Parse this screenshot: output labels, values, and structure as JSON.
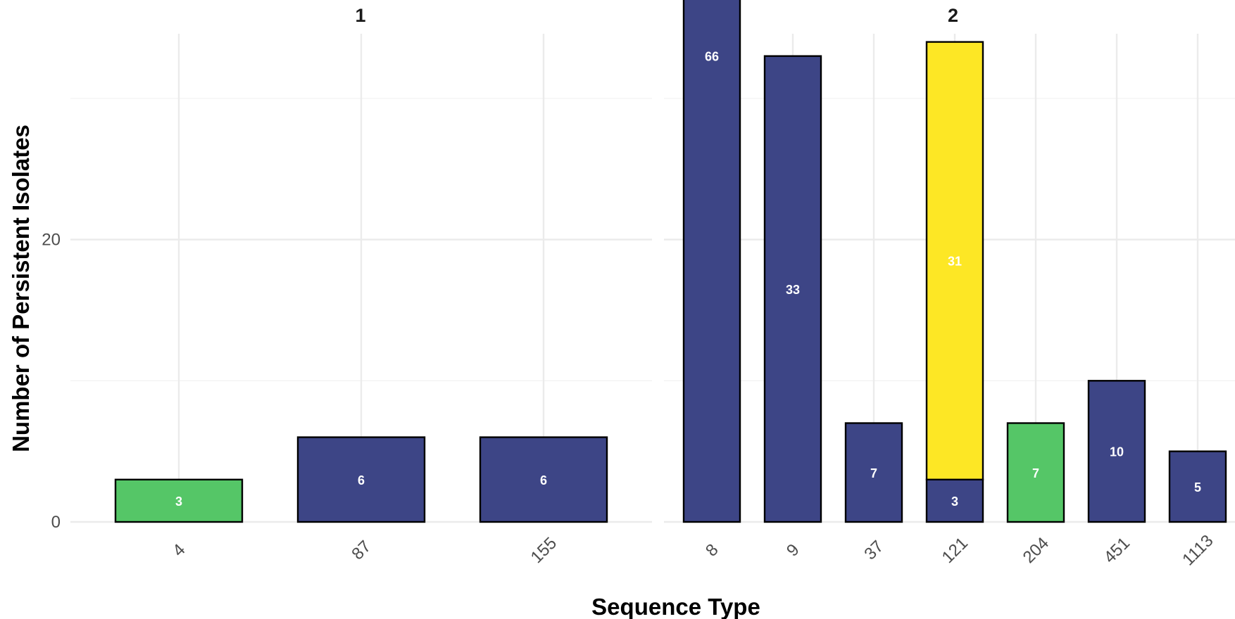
{
  "chart_data": {
    "type": "bar",
    "subtype": "stacked, faceted",
    "xlabel": "Sequence Type",
    "ylabel": "Number of Persistent Isolates",
    "ylim": [
      0,
      70
    ],
    "yticks": [
      0,
      20,
      40,
      60
    ],
    "grid": true,
    "legend": "none",
    "colors": {
      "navy": "#3d4586",
      "green": "#55c667",
      "yellow": "#fde725"
    },
    "panels": [
      {
        "title": "1",
        "categories": [
          "4",
          "87",
          "155"
        ],
        "bars": [
          {
            "category": "4",
            "segments": [
              {
                "value": 3,
                "color": "green",
                "label": "3"
              }
            ]
          },
          {
            "category": "87",
            "segments": [
              {
                "value": 6,
                "color": "navy",
                "label": "6"
              }
            ]
          },
          {
            "category": "155",
            "segments": [
              {
                "value": 6,
                "color": "navy",
                "label": "6"
              }
            ]
          }
        ]
      },
      {
        "title": "2",
        "categories": [
          "8",
          "9",
          "37",
          "121",
          "204",
          "451",
          "1113"
        ],
        "bars": [
          {
            "category": "8",
            "segments": [
              {
                "value": 66,
                "color": "navy",
                "label": "66"
              }
            ]
          },
          {
            "category": "9",
            "segments": [
              {
                "value": 33,
                "color": "navy",
                "label": "33"
              }
            ]
          },
          {
            "category": "37",
            "segments": [
              {
                "value": 7,
                "color": "navy",
                "label": "7"
              }
            ]
          },
          {
            "category": "121",
            "segments": [
              {
                "value": 3,
                "color": "navy",
                "label": "3"
              },
              {
                "value": 31,
                "color": "yellow",
                "label": "31"
              }
            ]
          },
          {
            "category": "204",
            "segments": [
              {
                "value": 7,
                "color": "green",
                "label": "7"
              }
            ]
          },
          {
            "category": "451",
            "segments": [
              {
                "value": 10,
                "color": "navy",
                "label": "10"
              }
            ]
          },
          {
            "category": "1113",
            "segments": [
              {
                "value": 5,
                "color": "navy",
                "label": "5"
              }
            ]
          }
        ]
      }
    ]
  }
}
